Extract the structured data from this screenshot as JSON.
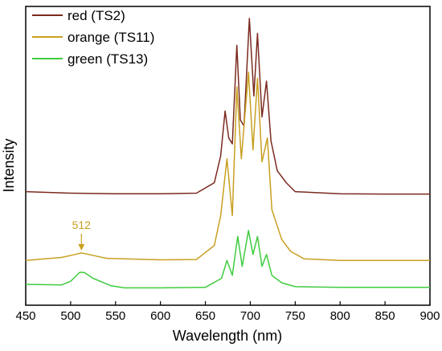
{
  "chart_data": {
    "type": "line",
    "xlabel": "Wavelength (nm)",
    "ylabel": "Intensity",
    "xlim": [
      450,
      900
    ],
    "ylim": [
      0,
      1
    ],
    "x_ticks": [
      "450",
      "500",
      "550",
      "600",
      "650",
      "700",
      "750",
      "800",
      "850",
      "900"
    ],
    "grid": false,
    "legend_position": "top-left",
    "series": [
      {
        "name": "red (TS2)",
        "color": "#7b2a1f",
        "points": [
          [
            450,
            0.38
          ],
          [
            500,
            0.375
          ],
          [
            550,
            0.373
          ],
          [
            600,
            0.373
          ],
          [
            640,
            0.375
          ],
          [
            660,
            0.41
          ],
          [
            667,
            0.5
          ],
          [
            672,
            0.65
          ],
          [
            676,
            0.56
          ],
          [
            680,
            0.54
          ],
          [
            685,
            0.87
          ],
          [
            689,
            0.62
          ],
          [
            693,
            0.6
          ],
          [
            699,
            0.96
          ],
          [
            704,
            0.7
          ],
          [
            708,
            0.91
          ],
          [
            713,
            0.63
          ],
          [
            718,
            0.75
          ],
          [
            723,
            0.55
          ],
          [
            730,
            0.45
          ],
          [
            740,
            0.41
          ],
          [
            750,
            0.38
          ],
          [
            800,
            0.373
          ],
          [
            850,
            0.372
          ],
          [
            900,
            0.372
          ]
        ]
      },
      {
        "name": "orange (TS11)",
        "color": "#c8a020",
        "points": [
          [
            450,
            0.15
          ],
          [
            490,
            0.16
          ],
          [
            505,
            0.17
          ],
          [
            512,
            0.175
          ],
          [
            520,
            0.17
          ],
          [
            540,
            0.157
          ],
          [
            600,
            0.152
          ],
          [
            640,
            0.153
          ],
          [
            660,
            0.2
          ],
          [
            667,
            0.3
          ],
          [
            674,
            0.49
          ],
          [
            680,
            0.3
          ],
          [
            685,
            0.73
          ],
          [
            690,
            0.49
          ],
          [
            698,
            0.78
          ],
          [
            703,
            0.52
          ],
          [
            708,
            0.76
          ],
          [
            713,
            0.48
          ],
          [
            719,
            0.56
          ],
          [
            724,
            0.32
          ],
          [
            735,
            0.22
          ],
          [
            745,
            0.18
          ],
          [
            760,
            0.155
          ],
          [
            800,
            0.15
          ],
          [
            850,
            0.15
          ],
          [
            900,
            0.15
          ]
        ]
      },
      {
        "name": "green (TS13)",
        "color": "#3fcc3f",
        "points": [
          [
            450,
            0.07
          ],
          [
            490,
            0.068
          ],
          [
            500,
            0.08
          ],
          [
            510,
            0.11
          ],
          [
            515,
            0.11
          ],
          [
            525,
            0.09
          ],
          [
            545,
            0.065
          ],
          [
            560,
            0.058
          ],
          [
            600,
            0.058
          ],
          [
            650,
            0.06
          ],
          [
            668,
            0.09
          ],
          [
            674,
            0.15
          ],
          [
            680,
            0.1
          ],
          [
            686,
            0.23
          ],
          [
            691,
            0.13
          ],
          [
            698,
            0.25
          ],
          [
            703,
            0.17
          ],
          [
            708,
            0.23
          ],
          [
            713,
            0.13
          ],
          [
            718,
            0.17
          ],
          [
            724,
            0.1
          ],
          [
            735,
            0.075
          ],
          [
            750,
            0.062
          ],
          [
            800,
            0.06
          ],
          [
            850,
            0.06
          ],
          [
            900,
            0.06
          ]
        ]
      }
    ],
    "annotation": {
      "text": "512",
      "x": 512,
      "series": "orange (TS11)",
      "color": "#c8a020"
    }
  }
}
